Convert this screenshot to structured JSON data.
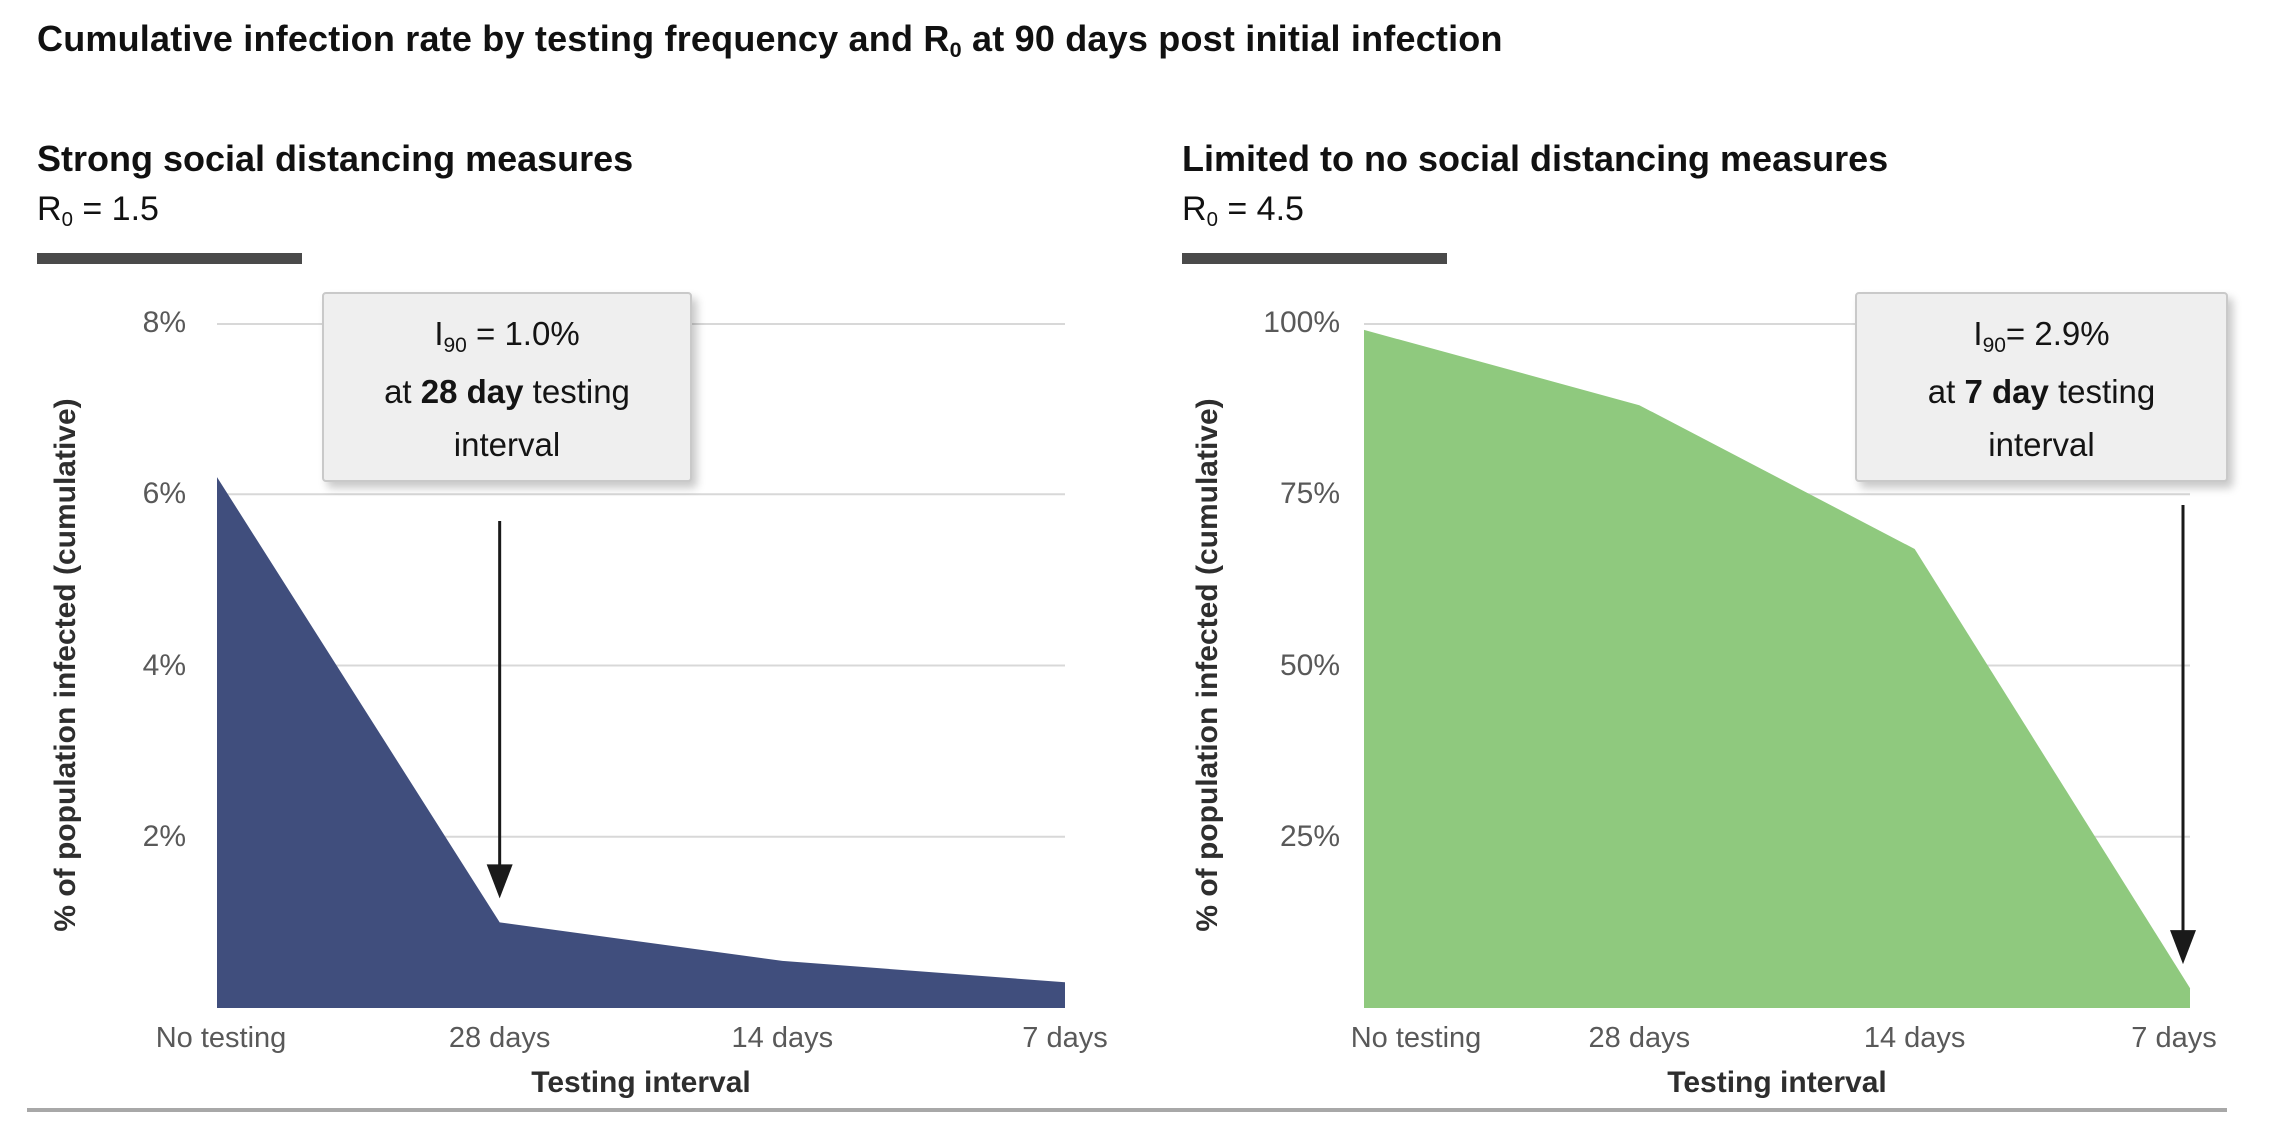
{
  "page_title": {
    "pre": "Cumulative infection rate by testing frequency and R",
    "sub": "0",
    "post": " at 90 days post initial infection"
  },
  "footer_rule_color": "#a8a8a8",
  "chart_data": [
    {
      "type": "area",
      "heading": "Strong social distancing measures",
      "r0_pre": "R",
      "r0_sub": "0",
      "r0_post": " = 1.5",
      "ylabel": "% of population infected (cumulative)",
      "xlabel": "Testing interval",
      "categories": [
        "No testing",
        "28 days",
        "14 days",
        "7 days"
      ],
      "values": [
        6.2,
        1.0,
        0.55,
        0.3
      ],
      "unit": "%",
      "ylim": [
        0,
        8
      ],
      "yticks": [
        {
          "v": 8,
          "label": "8%"
        },
        {
          "v": 6,
          "label": "6%"
        },
        {
          "v": 4,
          "label": "4%"
        },
        {
          "v": 2,
          "label": "2%"
        }
      ],
      "grid": true,
      "legend": "none",
      "fill_color": "#404e7d",
      "annotation": {
        "metric": "I",
        "metric_sub": "90",
        "value_text": " = 1.0%",
        "line2_pre": "at ",
        "line2_bold": "28 day",
        "line2_post": " testing",
        "line3": "interval",
        "points_to_category": "28 days"
      }
    },
    {
      "type": "area",
      "heading": "Limited to no social distancing measures",
      "r0_pre": "R",
      "r0_sub": "0",
      "r0_post": " = 4.5",
      "ylabel": "% of population infected (cumulative)",
      "xlabel": "Testing interval",
      "categories": [
        "No testing",
        "28 days",
        "14 days",
        "7 days"
      ],
      "values": [
        99,
        88,
        67,
        2.9
      ],
      "unit": "%",
      "ylim": [
        0,
        100
      ],
      "yticks": [
        {
          "v": 100,
          "label": "100%"
        },
        {
          "v": 75,
          "label": "75%"
        },
        {
          "v": 50,
          "label": "50%"
        },
        {
          "v": 25,
          "label": "25%"
        }
      ],
      "grid": true,
      "legend": "none",
      "fill_color": "#8fc97e",
      "annotation": {
        "metric": "I",
        "metric_sub": "90",
        "value_text": "= 2.9%",
        "line2_pre": "at ",
        "line2_bold": "7 day",
        "line2_post": " testing",
        "line3": "interval",
        "points_to_category": "7 days"
      }
    }
  ]
}
